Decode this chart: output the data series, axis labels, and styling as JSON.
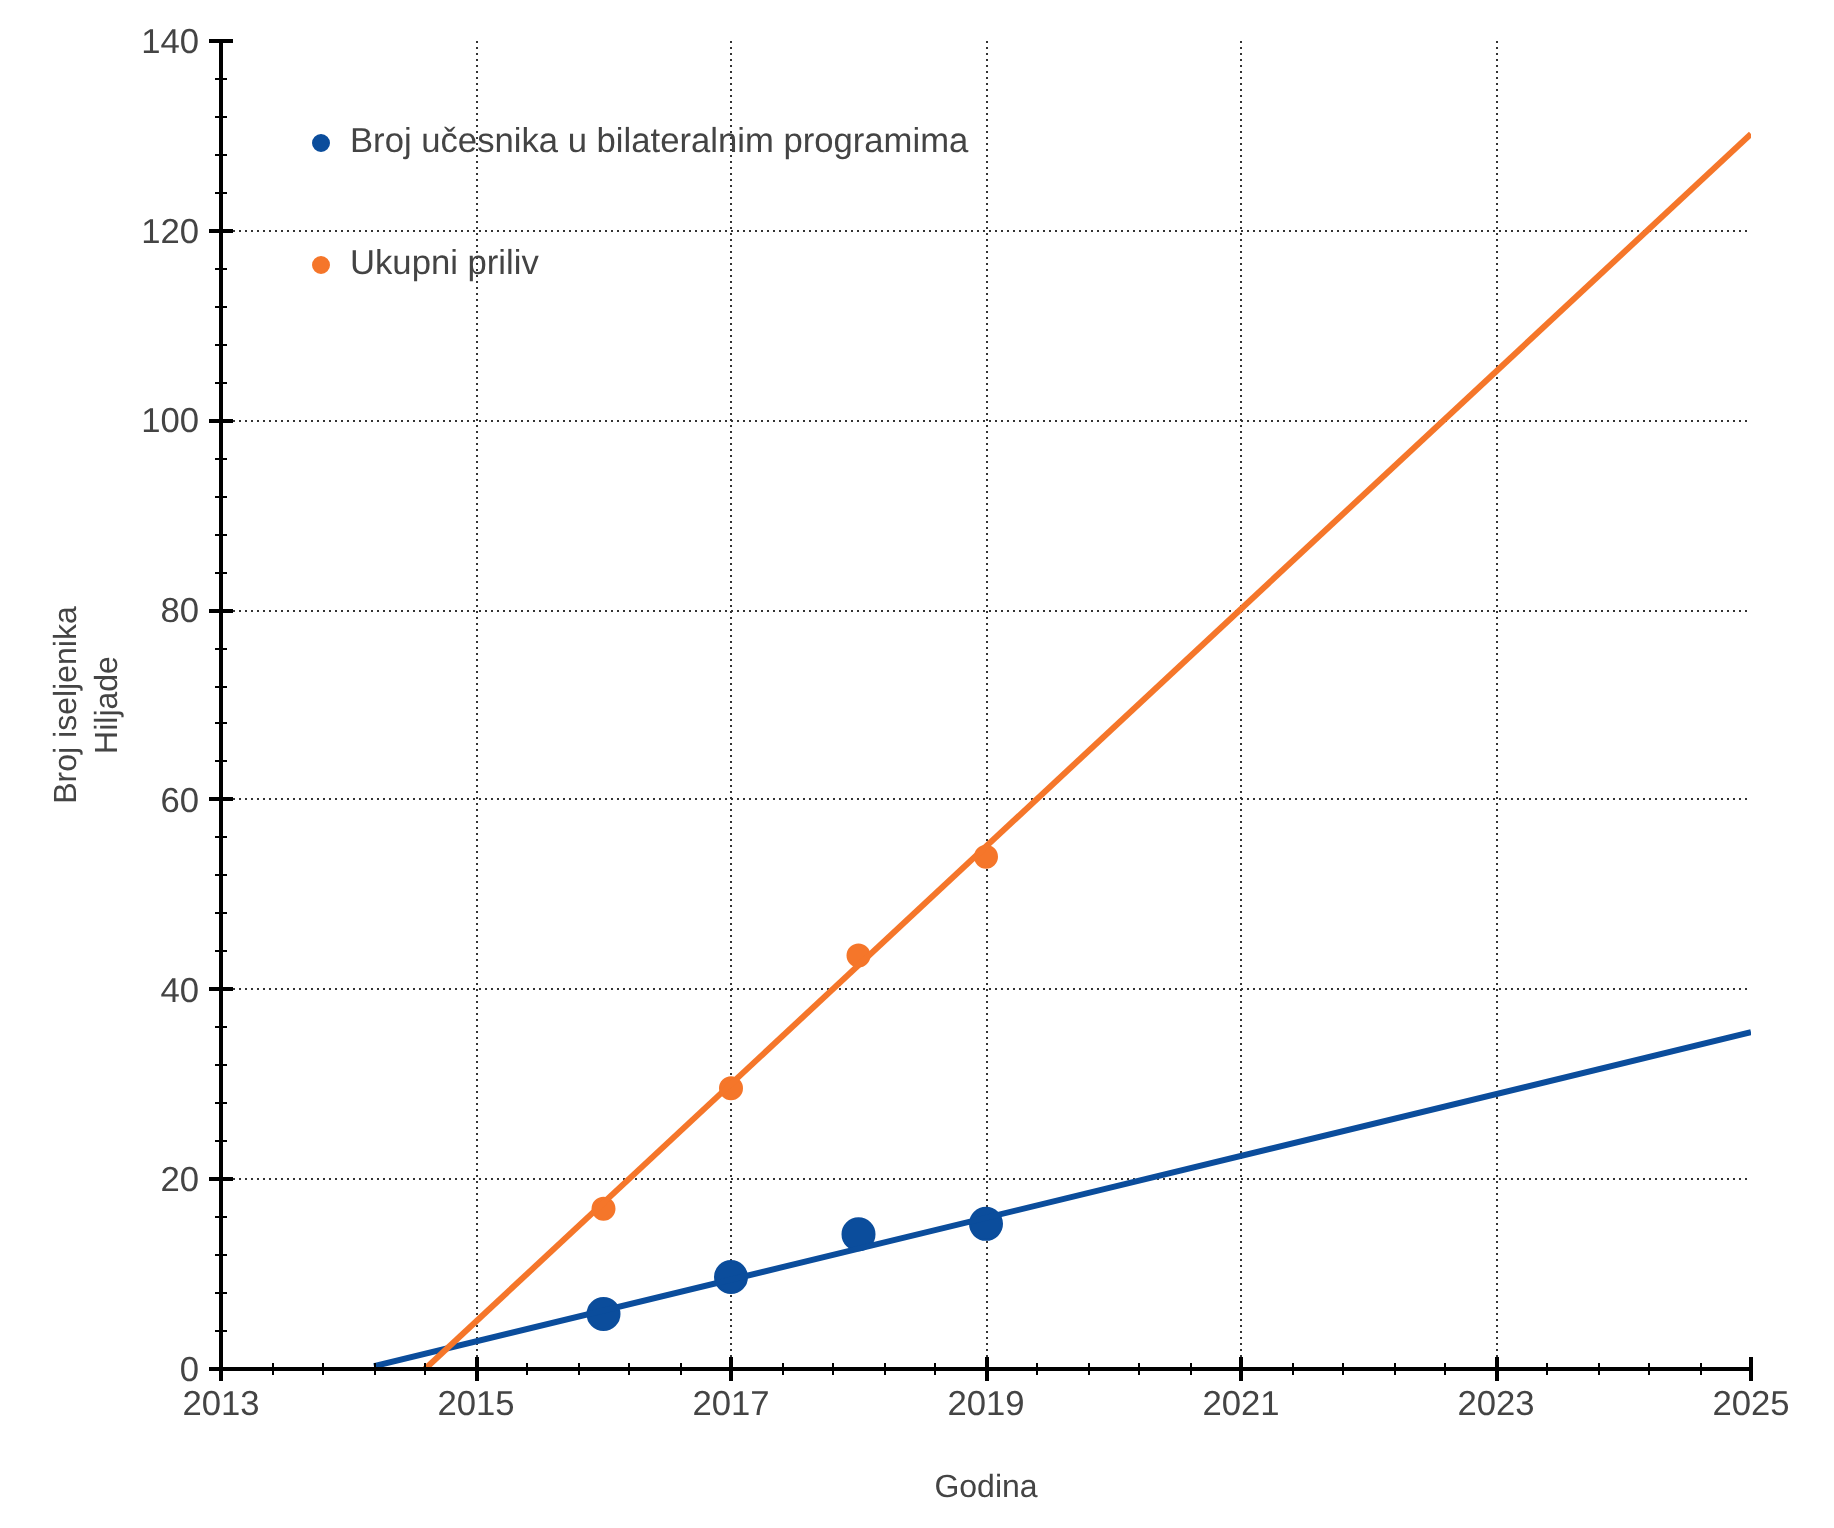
{
  "chart_data": {
    "type": "scatter",
    "xlabel": "Godina",
    "ylabel": "Broj iseljenika\nHiljade",
    "x": [
      2016,
      2017,
      2018,
      2019
    ],
    "series": [
      {
        "name": "Broj učesnika u bilateralnim programima",
        "color": "#0b4d9c",
        "values": [
          5.8,
          9.7,
          14.2,
          15.3
        ]
      },
      {
        "name": "Ukupni priliv",
        "color": "#f5762a",
        "values": [
          16.9,
          29.6,
          43.6,
          54.0
        ]
      },
      {
        "type": "line",
        "marker": "none",
        "color": "#0b4d9c",
        "x": [
          2014.2,
          2025
        ],
        "values": [
          0.3,
          35.5
        ]
      },
      {
        "type": "line",
        "marker": "none",
        "color": "#f5762a",
        "x": [
          2014.6,
          2025
        ],
        "values": [
          0,
          130.2
        ]
      }
    ],
    "xlim": [
      2013,
      2025
    ],
    "xticks": [
      2013,
      2015,
      2017,
      2019,
      2021,
      2023,
      2025
    ],
    "ylim": [
      0,
      140
    ],
    "yticks": [
      0,
      20,
      40,
      60,
      80,
      100,
      120,
      140
    ],
    "grid": true,
    "legend": "top left",
    "marker": "circle",
    "line_style": "solid"
  }
}
